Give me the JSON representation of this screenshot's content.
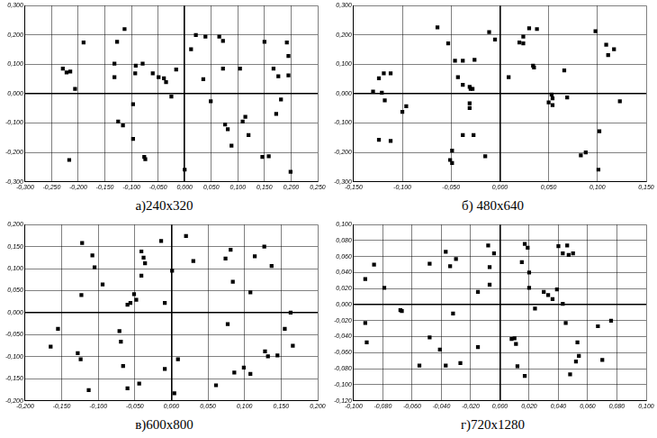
{
  "chart_data": [
    {
      "type": "scatter",
      "title": "а)240x320",
      "color": "#000000",
      "marker": "square",
      "grid": true,
      "xlim": [
        -0.3,
        0.25
      ],
      "ylim": [
        -0.3,
        0.3
      ],
      "xticks": [
        {
          "value": -0.3,
          "label": "-0,300"
        },
        {
          "value": -0.25,
          "label": "-0,250"
        },
        {
          "value": -0.2,
          "label": "-0,200"
        },
        {
          "value": -0.15,
          "label": "-0,150"
        },
        {
          "value": -0.1,
          "label": "-0,100"
        },
        {
          "value": -0.05,
          "label": "-0,050"
        },
        {
          "value": 0,
          "label": "0,000"
        },
        {
          "value": 0.05,
          "label": "0,050"
        },
        {
          "value": 0.1,
          "label": "0,100"
        },
        {
          "value": 0.15,
          "label": "0,150"
        },
        {
          "value": 0.2,
          "label": "0,200"
        },
        {
          "value": 0.25,
          "label": "0,250"
        }
      ],
      "yticks": [
        {
          "value": -0.3,
          "label": "-0,300"
        },
        {
          "value": -0.2,
          "label": "-0,200"
        },
        {
          "value": -0.1,
          "label": "-0,100"
        },
        {
          "value": 0,
          "label": "0,000"
        },
        {
          "value": 0.1,
          "label": "0,100"
        },
        {
          "value": 0.2,
          "label": "0,200"
        },
        {
          "value": 0.3,
          "label": "0,300"
        }
      ],
      "x": [
        -0.229,
        -0.222,
        -0.215,
        -0.206,
        -0.19,
        -0.217,
        -0.127,
        -0.113,
        -0.132,
        -0.132,
        -0.092,
        -0.079,
        -0.093,
        -0.097,
        -0.125,
        -0.116,
        -0.097,
        -0.076,
        -0.074,
        -0.06,
        -0.049,
        -0.039,
        -0.035,
        -0.025,
        -0.016,
        0.0,
        0.012,
        0.021,
        0.039,
        0.035,
        0.049,
        0.065,
        0.072,
        0.072,
        0.076,
        0.081,
        0.088,
        0.104,
        0.114,
        0.109,
        0.12,
        0.15,
        0.146,
        0.158,
        0.167,
        0.176,
        0.181,
        0.172,
        0.192,
        0.195,
        0.195,
        0.199
      ],
      "values": [
        0.085,
        0.072,
        0.075,
        0.016,
        0.174,
        -0.226,
        0.177,
        0.22,
        0.102,
        0.056,
        0.095,
        0.102,
        0.069,
        -0.036,
        -0.095,
        -0.108,
        -0.154,
        -0.216,
        -0.223,
        0.069,
        0.056,
        0.052,
        0.039,
        -0.01,
        0.082,
        -0.259,
        0.151,
        0.2,
        0.194,
        0.049,
        -0.026,
        0.194,
        0.18,
        0.085,
        -0.105,
        -0.121,
        -0.177,
        0.085,
        -0.079,
        -0.095,
        -0.141,
        0.177,
        -0.216,
        -0.213,
        0.085,
        0.059,
        -0.02,
        -0.069,
        0.174,
        0.128,
        0.062,
        -0.266
      ]
    },
    {
      "type": "scatter",
      "title": "б) 480x640",
      "color": "#000000",
      "marker": "square",
      "grid": true,
      "xlim": [
        -0.15,
        0.15
      ],
      "ylim": [
        -0.3,
        0.3
      ],
      "xticks": [
        {
          "value": -0.15,
          "label": "-0,150"
        },
        {
          "value": -0.1,
          "label": "-0,100"
        },
        {
          "value": -0.05,
          "label": "-0,050"
        },
        {
          "value": 0,
          "label": "0,000"
        },
        {
          "value": 0.05,
          "label": "0,050"
        },
        {
          "value": 0.1,
          "label": "0,100"
        },
        {
          "value": 0.15,
          "label": "0,150"
        }
      ],
      "yticks": [
        {
          "value": -0.3,
          "label": "-0,300"
        },
        {
          "value": -0.2,
          "label": "-0,200"
        },
        {
          "value": -0.1,
          "label": "-0,100"
        },
        {
          "value": 0,
          "label": "0,000"
        },
        {
          "value": 0.1,
          "label": "0,100"
        },
        {
          "value": 0.2,
          "label": "0,200"
        },
        {
          "value": 0.3,
          "label": "0,300"
        }
      ],
      "x": [
        -0.13,
        -0.124,
        -0.121,
        -0.119,
        -0.112,
        -0.118,
        -0.124,
        -0.112,
        -0.1,
        -0.096,
        -0.064,
        -0.053,
        -0.046,
        -0.038,
        -0.043,
        -0.038,
        -0.031,
        -0.03,
        -0.028,
        -0.031,
        -0.031,
        -0.026,
        -0.038,
        -0.027,
        -0.049,
        -0.051,
        -0.049,
        -0.015,
        -0.011,
        -0.005,
        0.009,
        0.02,
        0.024,
        0.03,
        0.038,
        0.024,
        0.034,
        0.035,
        0.05,
        0.053,
        0.054,
        0.054,
        0.066,
        0.069,
        0.083,
        0.088,
        0.098,
        0.101,
        0.102,
        0.109,
        0.111,
        0.117,
        0.123
      ],
      "values": [
        0.007,
        0.052,
        0.003,
        0.069,
        0.069,
        -0.023,
        -0.157,
        -0.161,
        -0.062,
        -0.043,
        0.226,
        0.171,
        0.112,
        0.112,
        0.056,
        0.03,
        0.023,
        0.016,
        0.016,
        -0.033,
        -0.049,
        0.115,
        -0.141,
        -0.141,
        -0.194,
        -0.226,
        -0.236,
        -0.213,
        0.21,
        0.184,
        0.056,
        0.174,
        0.194,
        0.223,
        0.22,
        0.171,
        0.095,
        0.089,
        -0.03,
        -0.003,
        -0.016,
        -0.039,
        0.079,
        -0.013,
        -0.21,
        -0.2,
        0.213,
        -0.259,
        -0.128,
        0.167,
        0.131,
        0.151,
        -0.026
      ]
    },
    {
      "type": "scatter",
      "title": "в)600x800",
      "color": "#000000",
      "marker": "square",
      "grid": true,
      "xlim": [
        -0.2,
        0.2
      ],
      "ylim": [
        -0.2,
        0.2
      ],
      "xticks": [
        {
          "value": -0.2,
          "label": "-0,200"
        },
        {
          "value": -0.15,
          "label": "-0,150"
        },
        {
          "value": -0.1,
          "label": "-0,100"
        },
        {
          "value": -0.05,
          "label": "-0,050"
        },
        {
          "value": 0,
          "label": "0,000"
        },
        {
          "value": 0.05,
          "label": "0,050"
        },
        {
          "value": 0.1,
          "label": "0,100"
        },
        {
          "value": 0.15,
          "label": "0,150"
        },
        {
          "value": 0.2,
          "label": "0,200"
        }
      ],
      "yticks": [
        {
          "value": -0.2,
          "label": "-0,200"
        },
        {
          "value": -0.15,
          "label": "-0,150"
        },
        {
          "value": -0.1,
          "label": "-0,100"
        },
        {
          "value": -0.05,
          "label": "-0,050"
        },
        {
          "value": 0,
          "label": "0,000"
        },
        {
          "value": 0.05,
          "label": "0,050"
        },
        {
          "value": 0.1,
          "label": "0,100"
        },
        {
          "value": 0.15,
          "label": "0,150"
        },
        {
          "value": 0.2,
          "label": "0,200"
        }
      ],
      "x": [
        -0.165,
        -0.155,
        -0.122,
        -0.108,
        -0.105,
        -0.094,
        -0.123,
        -0.128,
        -0.124,
        -0.113,
        -0.071,
        -0.069,
        -0.066,
        -0.06,
        -0.06,
        -0.056,
        -0.051,
        -0.048,
        -0.041,
        -0.038,
        -0.036,
        -0.041,
        -0.044,
        -0.014,
        -0.009,
        -0.009,
        0.001,
        0.004,
        0.009,
        0.02,
        0.03,
        0.061,
        0.074,
        0.081,
        0.077,
        0.084,
        0.086,
        0.099,
        0.108,
        0.108,
        0.114,
        0.127,
        0.128,
        0.132,
        0.137,
        0.145,
        0.155,
        0.166,
        0.163
      ],
      "values": [
        -0.077,
        -0.037,
        0.158,
        0.13,
        0.103,
        0.064,
        0.04,
        -0.092,
        -0.106,
        -0.176,
        -0.042,
        -0.066,
        -0.121,
        -0.172,
        0.018,
        0.022,
        0.042,
        0.029,
        0.139,
        0.125,
        0.112,
        0.084,
        -0.161,
        0.163,
        0.022,
        -0.128,
        0.095,
        -0.183,
        -0.106,
        0.174,
        0.117,
        -0.165,
        0.123,
        0.143,
        -0.026,
        0.07,
        -0.136,
        -0.125,
        -0.139,
        0.046,
        0.128,
        0.15,
        -0.088,
        -0.099,
        0.106,
        -0.097,
        -0.037,
        -0.075,
        0.0
      ]
    },
    {
      "type": "scatter",
      "title": "г)720x1280",
      "color": "#000000",
      "marker": "square",
      "grid": true,
      "xlim": [
        -0.1,
        0.1
      ],
      "ylim": [
        -0.12,
        0.1
      ],
      "xticks": [
        {
          "value": -0.1,
          "label": "-0,100"
        },
        {
          "value": -0.08,
          "label": "-0,080"
        },
        {
          "value": -0.06,
          "label": "-0,060"
        },
        {
          "value": -0.04,
          "label": "-0,040"
        },
        {
          "value": -0.02,
          "label": "-0,020"
        },
        {
          "value": 0,
          "label": "0,000"
        },
        {
          "value": 0.02,
          "label": "0,020"
        },
        {
          "value": 0.04,
          "label": "0,040"
        },
        {
          "value": 0.06,
          "label": "0,060"
        },
        {
          "value": 0.08,
          "label": "0,080"
        },
        {
          "value": 0.1,
          "label": "0,100"
        }
      ],
      "yticks": [
        {
          "value": -0.12,
          "label": "-0,120"
        },
        {
          "value": -0.1,
          "label": "-0,100"
        },
        {
          "value": -0.08,
          "label": "-0,080"
        },
        {
          "value": -0.06,
          "label": "-0,060"
        },
        {
          "value": -0.04,
          "label": "-0,040"
        },
        {
          "value": -0.02,
          "label": "-0,020"
        },
        {
          "value": 0,
          "label": "0,000"
        },
        {
          "value": 0.02,
          "label": "0,020"
        },
        {
          "value": 0.04,
          "label": "0,040"
        },
        {
          "value": 0.06,
          "label": "0,060"
        },
        {
          "value": 0.08,
          "label": "0,080"
        },
        {
          "value": 0.1,
          "label": "0,100"
        }
      ],
      "x": [
        -0.092,
        -0.086,
        -0.079,
        -0.092,
        -0.091,
        -0.068,
        -0.067,
        -0.055,
        -0.048,
        -0.048,
        -0.041,
        -0.037,
        -0.037,
        -0.034,
        -0.03,
        -0.032,
        -0.027,
        -0.015,
        -0.015,
        -0.008,
        -0.007,
        -0.007,
        -0.004,
        0.008,
        0.01,
        0.011,
        0.012,
        0.017,
        0.015,
        0.017,
        0.019,
        0.02,
        0.02,
        0.03,
        0.033,
        0.036,
        0.039,
        0.043,
        0.024,
        0.04,
        0.043,
        0.046,
        0.047,
        0.05,
        0.045,
        0.053,
        0.054,
        0.052,
        0.048,
        0.076,
        0.067,
        0.07
      ],
      "values": [
        0.032,
        0.05,
        0.021,
        -0.023,
        -0.047,
        -0.007,
        -0.008,
        -0.076,
        0.051,
        -0.041,
        -0.056,
        0.066,
        -0.076,
        0.048,
        0.057,
        -0.011,
        -0.073,
        0.016,
        -0.053,
        0.074,
        0.047,
        0.025,
        0.064,
        -0.043,
        -0.042,
        -0.049,
        -0.077,
        -0.089,
        0.053,
        0.076,
        0.071,
        0.04,
        0.021,
        0.016,
        0.012,
        0.007,
        0.019,
        0.001,
        -0.005,
        0.073,
        0.064,
        0.074,
        0.062,
        0.064,
        -0.023,
        -0.047,
        -0.064,
        -0.071,
        -0.087,
        -0.02,
        -0.027,
        -0.069
      ]
    }
  ]
}
